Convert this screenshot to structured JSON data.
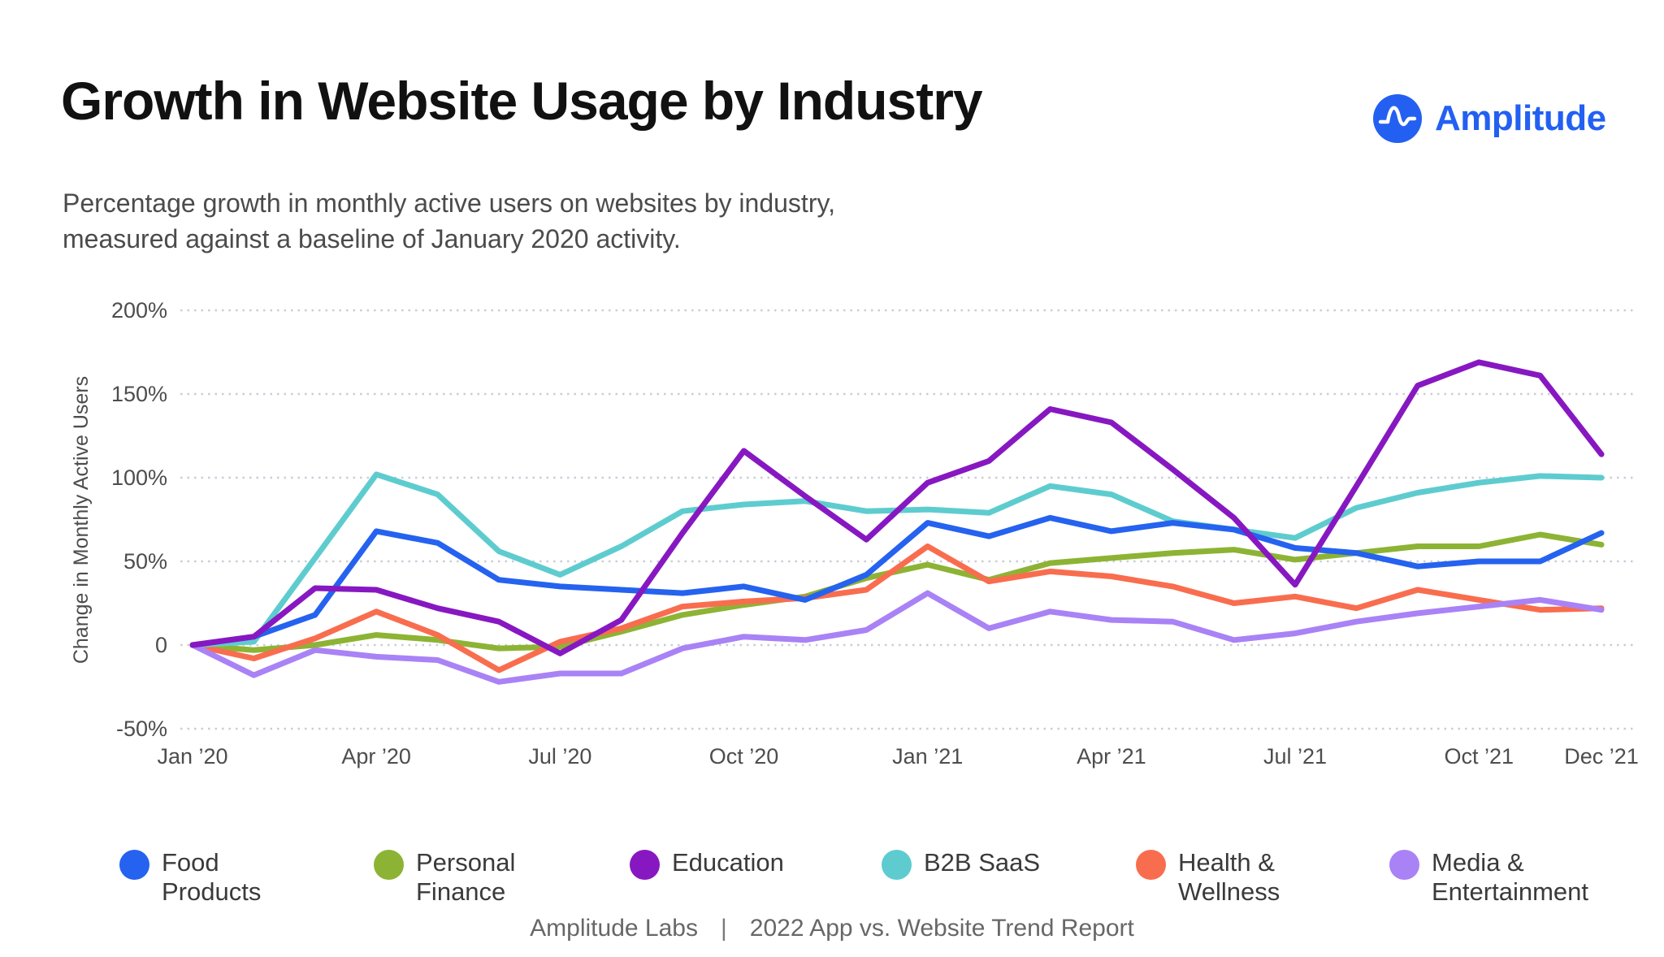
{
  "page": {
    "title": "Growth in Website Usage by Industry",
    "subtitle_line1": "Percentage growth in monthly active users on websites by industry,",
    "subtitle_line2": "measured against a baseline of January 2020 activity.",
    "brand": {
      "name": "Amplitude",
      "color": "#2360f2"
    },
    "footer": {
      "left": "Amplitude Labs",
      "separator": "|",
      "right": "2022 App vs. Website Trend Report"
    }
  },
  "chart_data": {
    "type": "line",
    "title": "Growth in Website Usage by Industry",
    "xlabel": "",
    "ylabel": "Change in Monthly Active Users",
    "unit": "percent",
    "ylim": [
      -50,
      200
    ],
    "grid": "horizontal-dotted",
    "legend_position": "bottom",
    "n_points": 24,
    "x_range": [
      "Jan 2020",
      "Dec 2021"
    ],
    "x_ticks": [
      {
        "label": "Jan ’20",
        "month": 0
      },
      {
        "label": "Apr ’20",
        "month": 3
      },
      {
        "label": "Jul ’20",
        "month": 6
      },
      {
        "label": "Oct ’20",
        "month": 9
      },
      {
        "label": "Jan ’21",
        "month": 12
      },
      {
        "label": "Apr ’21",
        "month": 15
      },
      {
        "label": "Jul ’21",
        "month": 18
      },
      {
        "label": "Oct ’21",
        "month": 21
      },
      {
        "label": "Dec ’21",
        "month": 23
      }
    ],
    "y_ticks": [
      {
        "label": "200%",
        "value": 200
      },
      {
        "label": "150%",
        "value": 150
      },
      {
        "label": "100%",
        "value": 100
      },
      {
        "label": "50%",
        "value": 50
      },
      {
        "label": "0",
        "value": 0
      },
      {
        "label": "-50%",
        "value": -50
      }
    ],
    "series": [
      {
        "name": "Food Products",
        "color": "#2562ef",
        "values": [
          0,
          5,
          18,
          68,
          61,
          39,
          35,
          33,
          31,
          35,
          27,
          42,
          73,
          65,
          76,
          68,
          73,
          69,
          58,
          55,
          47,
          50,
          50,
          67
        ]
      },
      {
        "name": "Personal Finance",
        "color": "#8db334",
        "values": [
          0,
          -3,
          0,
          6,
          3,
          -2,
          -1,
          8,
          18,
          24,
          29,
          40,
          48,
          39,
          49,
          52,
          55,
          57,
          51,
          55,
          59,
          59,
          66,
          60
        ]
      },
      {
        "name": "Education",
        "color": "#8718c1",
        "values": [
          0,
          5,
          34,
          33,
          22,
          14,
          -5,
          15,
          67,
          116,
          89,
          63,
          97,
          110,
          141,
          133,
          105,
          76,
          36,
          95,
          155,
          169,
          161,
          114
        ]
      },
      {
        "name": "B2B SaaS",
        "color": "#5ecccf",
        "values": [
          0,
          2,
          52,
          102,
          90,
          56,
          42,
          59,
          80,
          84,
          86,
          80,
          81,
          79,
          95,
          90,
          74,
          69,
          64,
          82,
          91,
          97,
          101,
          100
        ]
      },
      {
        "name": "Health & Wellness",
        "color": "#f96d4f",
        "values": [
          0,
          -8,
          4,
          20,
          6,
          -15,
          2,
          10,
          23,
          26,
          28,
          33,
          59,
          38,
          44,
          41,
          35,
          25,
          29,
          22,
          33,
          27,
          21,
          22
        ]
      },
      {
        "name": "Media & Entertainment",
        "color": "#a982f6",
        "values": [
          0,
          -18,
          -3,
          -7,
          -9,
          -22,
          -17,
          -17,
          -2,
          5,
          3,
          9,
          31,
          10,
          20,
          15,
          14,
          3,
          7,
          14,
          19,
          23,
          27,
          21
        ]
      }
    ],
    "z_order": [
      1,
      4,
      3,
      0,
      5,
      2
    ]
  }
}
